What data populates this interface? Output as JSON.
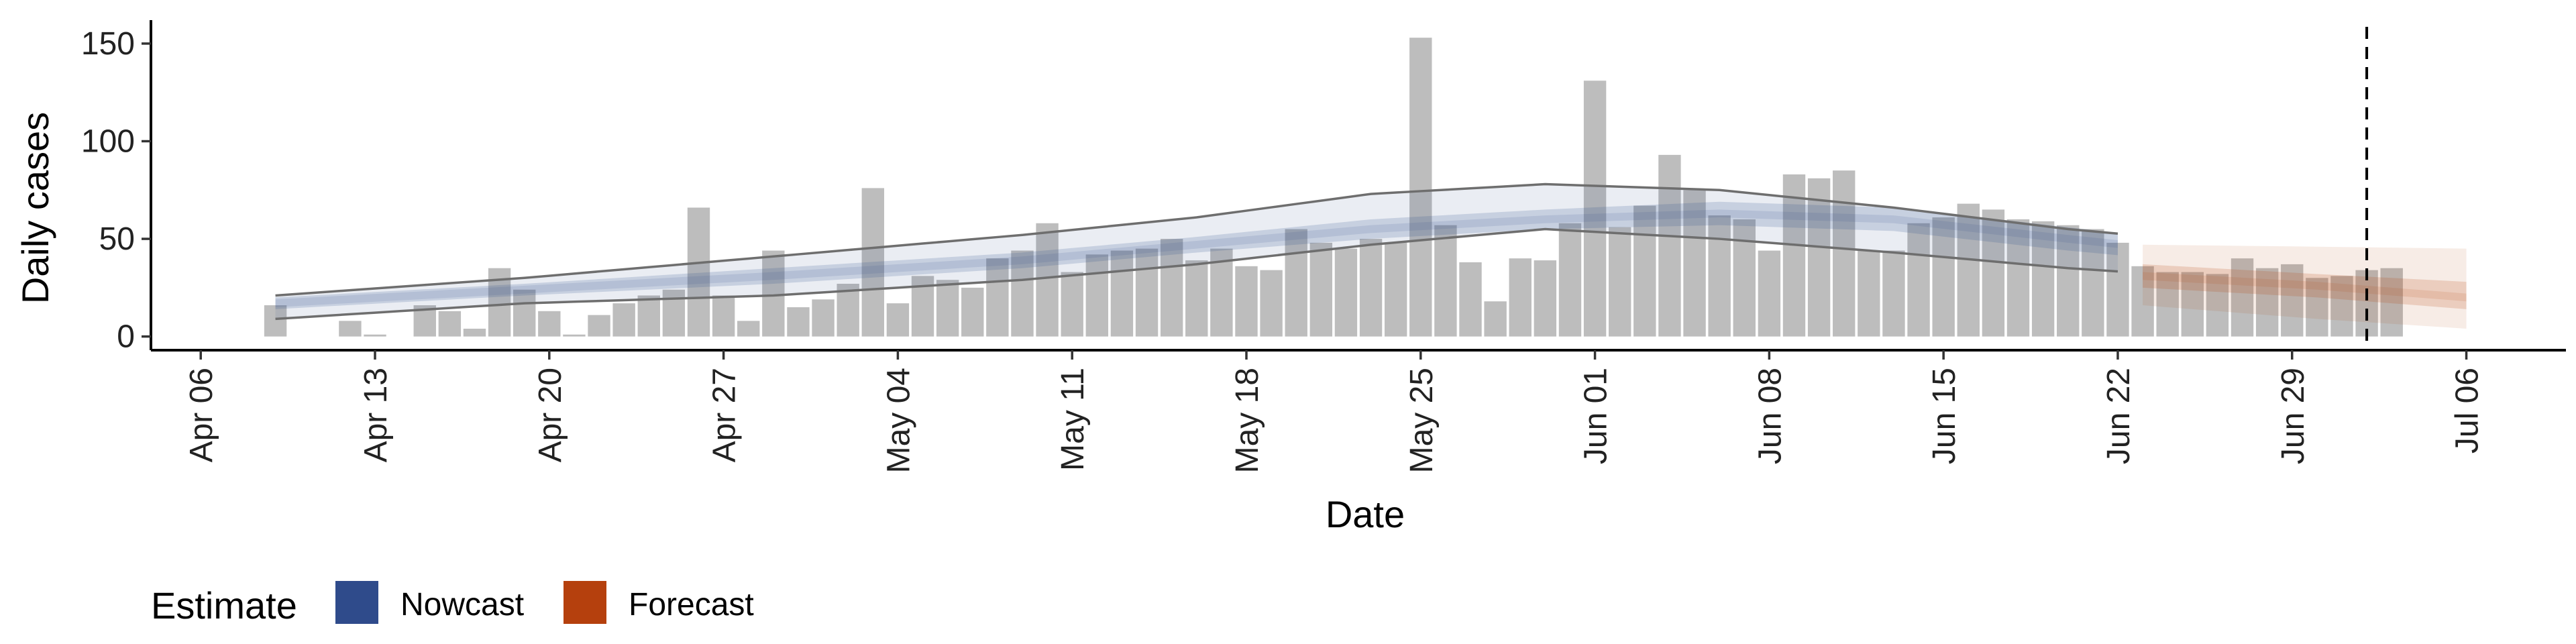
{
  "chart_data": {
    "type": "bar",
    "xlabel": "Date",
    "ylabel": "Daily cases",
    "x_ticks": [
      "Apr 06",
      "Apr 13",
      "Apr 20",
      "Apr 27",
      "May 04",
      "May 11",
      "May 18",
      "May 25",
      "Jun 01",
      "Jun 08",
      "Jun 15",
      "Jun 22",
      "Jun 29",
      "Jul 06"
    ],
    "y_ticks": [
      0,
      50,
      100,
      150
    ],
    "ylim": [
      -7,
      162
    ],
    "xlim": [
      "2020-04-04",
      "2020-07-10"
    ],
    "bar_color": "#bdbdbd",
    "reported_cases": {
      "start_date": "2020-04-09",
      "values": [
        16,
        0,
        0,
        8,
        1,
        0,
        16,
        13,
        4,
        35,
        24,
        13,
        1,
        11,
        17,
        21,
        24,
        66,
        21,
        8,
        44,
        15,
        19,
        27,
        76,
        17,
        31,
        29,
        25,
        40,
        44,
        58,
        33,
        42,
        44,
        45,
        50,
        39,
        45,
        36,
        34,
        55,
        48,
        45,
        50,
        48,
        153,
        57,
        38,
        18,
        40,
        39,
        58,
        131,
        56,
        67,
        93,
        75,
        62,
        60,
        44,
        83,
        81,
        85,
        44,
        44,
        58,
        61,
        68,
        65,
        60,
        59,
        57,
        55,
        48,
        36,
        33,
        33,
        32,
        40,
        35,
        37,
        30,
        31,
        34,
        35
      ]
    },
    "series": [
      {
        "name": "Nowcast",
        "color": "#2f4b8b",
        "x_start": "2020-04-09",
        "x_end": "2020-06-22",
        "median": [
          [
            0,
            17
          ],
          [
            10,
            24
          ],
          [
            20,
            31
          ],
          [
            30,
            39
          ],
          [
            37,
            47
          ],
          [
            44,
            55
          ],
          [
            51,
            60
          ],
          [
            58,
            63
          ],
          [
            65,
            60
          ],
          [
            72,
            50
          ],
          [
            78,
            42
          ],
          [
            84,
            36
          ]
        ],
        "inner": {
          "lower": [
            [
              0,
              14
            ],
            [
              10,
              21
            ],
            [
              20,
              27
            ],
            [
              30,
              35
            ],
            [
              37,
              43
            ],
            [
              44,
              50
            ],
            [
              51,
              55
            ],
            [
              58,
              57
            ],
            [
              65,
              54
            ],
            [
              72,
              44
            ],
            [
              78,
              37
            ],
            [
              84,
              31
            ]
          ],
          "upper": [
            [
              0,
              20
            ],
            [
              10,
              27
            ],
            [
              20,
              35
            ],
            [
              30,
              43
            ],
            [
              37,
              51
            ],
            [
              44,
              60
            ],
            [
              51,
              65
            ],
            [
              58,
              69
            ],
            [
              65,
              66
            ],
            [
              72,
              56
            ],
            [
              78,
              47
            ],
            [
              84,
              41
            ]
          ]
        },
        "outer": {
          "lower": [
            [
              0,
              9
            ],
            [
              10,
              17
            ],
            [
              20,
              21
            ],
            [
              30,
              29
            ],
            [
              37,
              37
            ],
            [
              44,
              47
            ],
            [
              51,
              55
            ],
            [
              58,
              50
            ],
            [
              65,
              43
            ],
            [
              72,
              35
            ],
            [
              78,
              30
            ],
            [
              84,
              24
            ]
          ],
          "upper": [
            [
              0,
              21
            ],
            [
              10,
              30
            ],
            [
              20,
              41
            ],
            [
              30,
              52
            ],
            [
              37,
              61
            ],
            [
              44,
              73
            ],
            [
              51,
              78
            ],
            [
              58,
              75
            ],
            [
              65,
              66
            ],
            [
              72,
              55
            ],
            [
              78,
              48
            ],
            [
              84,
              45
            ]
          ]
        }
      },
      {
        "name": "Forecast",
        "color": "#b5400d",
        "x_start": "2020-06-23",
        "x_end": "2020-07-06",
        "median": [
          [
            0,
            31
          ],
          [
            7,
            26
          ],
          [
            13,
            20
          ]
        ],
        "inner": {
          "lower": [
            [
              0,
              25
            ],
            [
              7,
              20
            ],
            [
              13,
              14
            ]
          ],
          "upper": [
            [
              0,
              37
            ],
            [
              7,
              32
            ],
            [
              13,
              28
            ]
          ]
        },
        "outer": {
          "lower": [
            [
              0,
              16
            ],
            [
              7,
              9
            ],
            [
              13,
              4
            ]
          ],
          "upper": [
            [
              0,
              47
            ],
            [
              7,
              46
            ],
            [
              13,
              45
            ]
          ]
        }
      }
    ],
    "vline": {
      "date": "2020-07-02",
      "style": "dashed"
    },
    "legend": {
      "title": "Estimate",
      "position": "bottom-left",
      "entries": [
        {
          "label": "Nowcast",
          "color": "#2f4b8b"
        },
        {
          "label": "Forecast",
          "color": "#b5400d"
        }
      ]
    },
    "grid": false
  }
}
